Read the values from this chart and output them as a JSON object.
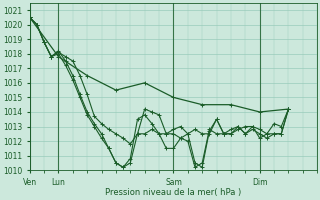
{
  "title": "",
  "xlabel": "Pression niveau de la mer( hPa )",
  "ylabel": "",
  "bg_color": "#cce8dc",
  "grid_color": "#99ccbb",
  "line_color": "#1a5c28",
  "ylim": [
    1010,
    1021.5
  ],
  "yticks": [
    1010,
    1011,
    1012,
    1013,
    1014,
    1015,
    1016,
    1017,
    1018,
    1019,
    1020,
    1021
  ],
  "xtick_labels": [
    "Ven",
    "Lun",
    "Sam",
    "Dim"
  ],
  "xtick_positions": [
    0,
    16,
    80,
    128
  ],
  "total_hours": 160,
  "series": [
    [
      0,
      1020.5,
      4,
      1020.0,
      8,
      1018.8,
      12,
      1017.8,
      16,
      1018.1,
      20,
      1017.8,
      24,
      1017.5,
      28,
      1016.5,
      32,
      1015.2,
      36,
      1013.7,
      40,
      1013.2,
      44,
      1012.8,
      48,
      1012.5,
      52,
      1012.2,
      56,
      1011.8,
      60,
      1012.5,
      64,
      1014.2,
      68,
      1014.0,
      72,
      1013.8,
      76,
      1012.5,
      80,
      1012.5,
      84,
      1012.2,
      88,
      1012.5,
      92,
      1010.5,
      96,
      1010.2,
      100,
      1012.7,
      104,
      1013.5,
      108,
      1012.5,
      112,
      1012.5,
      116,
      1012.8,
      120,
      1013.0,
      124,
      1013.0,
      128,
      1012.2,
      132,
      1012.5,
      136,
      1013.2,
      140,
      1013.0,
      144,
      1014.2
    ],
    [
      0,
      1020.5,
      4,
      1020.0,
      8,
      1018.8,
      12,
      1017.8,
      16,
      1018.2,
      20,
      1017.5,
      24,
      1016.5,
      28,
      1015.2,
      32,
      1014.0,
      36,
      1013.2,
      40,
      1012.5,
      44,
      1011.5,
      48,
      1010.5,
      52,
      1010.2,
      56,
      1010.5,
      60,
      1012.5,
      64,
      1012.5,
      68,
      1012.8,
      72,
      1012.5,
      76,
      1011.5,
      80,
      1011.5,
      84,
      1012.2,
      88,
      1012.0,
      92,
      1010.2,
      96,
      1010.5,
      100,
      1012.8,
      104,
      1012.5,
      108,
      1012.5,
      112,
      1012.8,
      116,
      1013.0,
      120,
      1012.5,
      124,
      1012.8,
      128,
      1012.5,
      132,
      1012.2,
      136,
      1012.5,
      140,
      1012.5,
      144,
      1014.2
    ],
    [
      0,
      1020.5,
      4,
      1020.0,
      8,
      1018.8,
      12,
      1017.8,
      16,
      1018.0,
      20,
      1017.2,
      24,
      1016.2,
      28,
      1015.0,
      32,
      1013.8,
      36,
      1013.0,
      40,
      1012.2,
      44,
      1011.5,
      48,
      1010.5,
      52,
      1010.2,
      56,
      1010.8,
      60,
      1013.5,
      64,
      1013.8,
      68,
      1013.2,
      72,
      1012.5,
      76,
      1012.5,
      80,
      1012.8,
      84,
      1013.0,
      88,
      1012.5,
      92,
      1012.8,
      96,
      1012.5,
      100,
      1012.5,
      104,
      1013.5,
      108,
      1012.5,
      112,
      1012.5,
      116,
      1013.0,
      120,
      1012.5,
      124,
      1013.0,
      128,
      1012.8,
      132,
      1012.5,
      136,
      1012.5,
      140,
      1012.5,
      144,
      1014.2
    ],
    [
      0,
      1020.5,
      16,
      1017.8,
      32,
      1016.5,
      48,
      1015.5,
      64,
      1016.0,
      80,
      1015.0,
      96,
      1014.5,
      112,
      1014.5,
      128,
      1014.0,
      144,
      1014.2
    ]
  ],
  "vline_positions": [
    0,
    16,
    80,
    128
  ],
  "marker": "+"
}
